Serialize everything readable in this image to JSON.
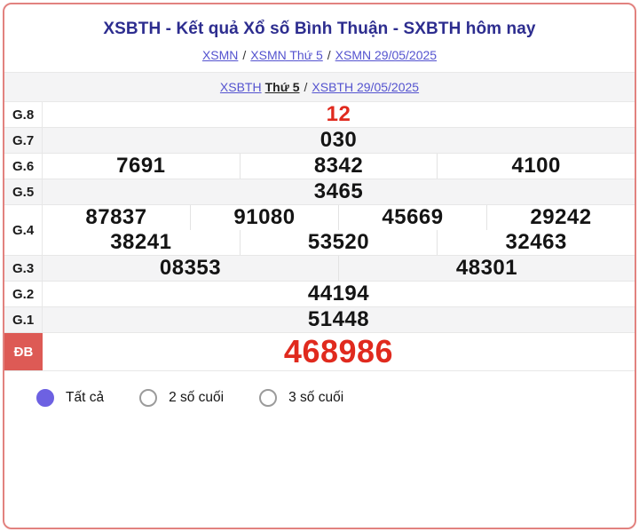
{
  "page": {
    "title": "XSBTH - Kết quả Xổ số Bình Thuận - SXBTH hôm nay"
  },
  "breadcrumbs_top": {
    "separator": "/",
    "items": [
      "XSMN",
      "XSMN Thứ 5",
      "XSMN 29/05/2025"
    ]
  },
  "breadcrumbs_sub": {
    "link1": "XSBTH",
    "bold1": "Thứ 5",
    "separator": "/",
    "link2": "XSBTH 29/05/2025"
  },
  "colors": {
    "accent_red": "#e02a1e",
    "special_label_bg": "#dd5a55",
    "link_purple": "#5453cf",
    "title_navy": "#2d2d8f",
    "radio_selected": "#6d61e2",
    "card_border": "#e2827f",
    "alt_row_bg": "#f4f4f5"
  },
  "results_table": {
    "rows": [
      {
        "label": "G.8",
        "highlight": true,
        "special": false,
        "lines": [
          [
            "12"
          ]
        ]
      },
      {
        "label": "G.7",
        "highlight": false,
        "special": false,
        "lines": [
          [
            "030"
          ]
        ]
      },
      {
        "label": "G.6",
        "highlight": false,
        "special": false,
        "lines": [
          [
            "7691",
            "8342",
            "4100"
          ]
        ]
      },
      {
        "label": "G.5",
        "highlight": false,
        "special": false,
        "lines": [
          [
            "3465"
          ]
        ]
      },
      {
        "label": "G.4",
        "highlight": false,
        "special": false,
        "lines": [
          [
            "87837",
            "91080",
            "45669",
            "29242"
          ],
          [
            "38241",
            "53520",
            "32463"
          ]
        ]
      },
      {
        "label": "G.3",
        "highlight": false,
        "special": false,
        "lines": [
          [
            "08353",
            "48301"
          ]
        ]
      },
      {
        "label": "G.2",
        "highlight": false,
        "special": false,
        "lines": [
          [
            "44194"
          ]
        ]
      },
      {
        "label": "G.1",
        "highlight": false,
        "special": false,
        "lines": [
          [
            "51448"
          ]
        ]
      },
      {
        "label": "ĐB",
        "highlight": true,
        "special": true,
        "lines": [
          [
            "468986"
          ]
        ]
      }
    ]
  },
  "filters": {
    "options": [
      {
        "label": "Tất cả",
        "selected": true
      },
      {
        "label": "2 số cuối",
        "selected": false
      },
      {
        "label": "3 số cuối",
        "selected": false
      }
    ]
  }
}
